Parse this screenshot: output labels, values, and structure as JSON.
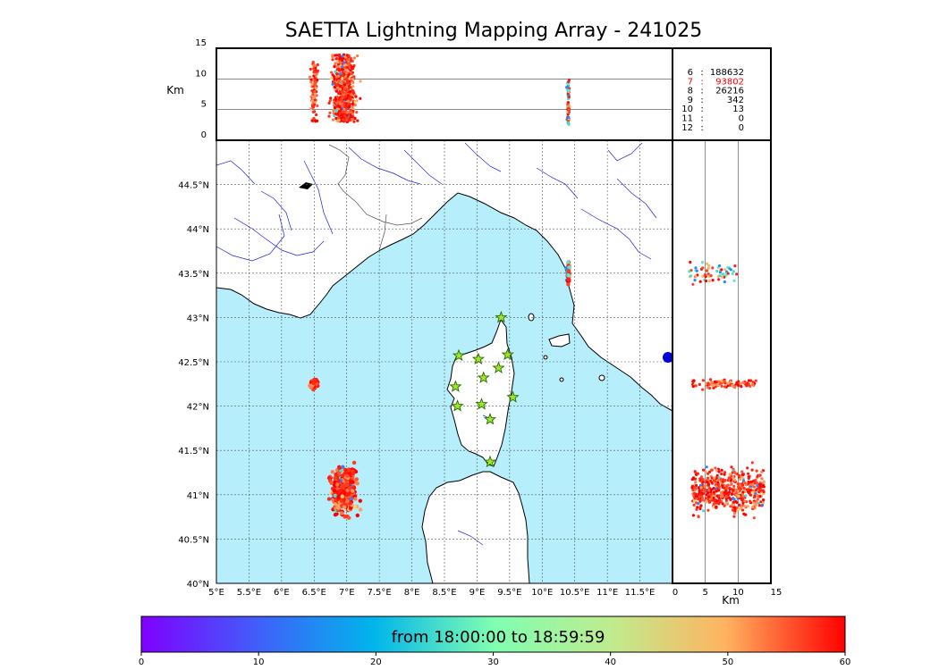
{
  "title": "SAETTA Lightning Mapping Array - 241025",
  "colors": {
    "sea": "#b6eefb",
    "land": "#ffffff",
    "coast": "#000000",
    "river": "#2020dd",
    "border": "#555555",
    "station_fill": "#9ee62a",
    "station_stroke": "#2a6a00",
    "grid": "#555555"
  },
  "altitude_panel": {
    "ylabel": "Km",
    "yticks": [
      0,
      5,
      10,
      15
    ],
    "ylim": [
      0,
      15
    ]
  },
  "side_panel": {
    "xlabel": "Km",
    "xticks": [
      0,
      5,
      10,
      15
    ],
    "xlim": [
      0,
      15
    ]
  },
  "counts": [
    {
      "stations": "6",
      "sep": ":",
      "value": "188632",
      "color": "#000000"
    },
    {
      "stations": "7",
      "sep": ":",
      "value": "93802",
      "color": "#ff0000"
    },
    {
      "stations": "8",
      "sep": ":",
      "value": "26216",
      "color": "#000000"
    },
    {
      "stations": "9",
      "sep": ":",
      "value": "342",
      "color": "#000000"
    },
    {
      "stations": "10",
      "sep": ":",
      "value": "13",
      "color": "#000000"
    },
    {
      "stations": "11",
      "sep": ":",
      "value": "0",
      "color": "#000000"
    },
    {
      "stations": "12",
      "sep": ":",
      "value": "0",
      "color": "#000000"
    }
  ],
  "map": {
    "lon_range": [
      5.0,
      12.0
    ],
    "lat_range": [
      40.0,
      45.0
    ],
    "lon_ticks": [
      "5°E",
      "5.5°E",
      "6°E",
      "6.5°E",
      "7°E",
      "7.5°E",
      "8°E",
      "8.5°E",
      "9°E",
      "9.5°E",
      "10°E",
      "10.5°E",
      "11°E",
      "11.5°E"
    ],
    "lat_ticks": [
      "40°N",
      "40.5°N",
      "41°N",
      "41.5°N",
      "42°N",
      "42.5°N",
      "43°N",
      "43.5°N",
      "44°N",
      "44.5°N"
    ]
  },
  "colorbar": {
    "label": "from 18:00:00 to 18:59:59",
    "ticks": [
      "0",
      "10",
      "20",
      "30",
      "40",
      "50",
      "60"
    ],
    "range": [
      0,
      60
    ]
  },
  "chart_data": {
    "type": "scatter",
    "title": "SAETTA Lightning Mapping Array - 241025",
    "xlabel": "",
    "ylabel": "",
    "xlim": [
      5.0,
      12.0
    ],
    "ylim": [
      40.0,
      45.0
    ],
    "color_variable_range": [
      0,
      60
    ],
    "stations": [
      {
        "lon": 9.37,
        "lat": 43.0
      },
      {
        "lon": 8.72,
        "lat": 42.57
      },
      {
        "lon": 9.02,
        "lat": 42.53
      },
      {
        "lon": 9.47,
        "lat": 42.58
      },
      {
        "lon": 9.33,
        "lat": 42.43
      },
      {
        "lon": 9.1,
        "lat": 42.32
      },
      {
        "lon": 8.67,
        "lat": 42.22
      },
      {
        "lon": 9.55,
        "lat": 42.1
      },
      {
        "lon": 8.7,
        "lat": 42.0
      },
      {
        "lon": 9.07,
        "lat": 42.02
      },
      {
        "lon": 9.2,
        "lat": 41.85
      },
      {
        "lon": 9.2,
        "lat": 41.37
      }
    ],
    "lightning_clusters": [
      {
        "lon_center": 6.95,
        "lat_center": 41.05,
        "lon_spread": 0.27,
        "lat_spread": 0.35,
        "alt_min_km": 3,
        "alt_max_km": 14,
        "dominant_time": "late"
      },
      {
        "lon_center": 6.5,
        "lat_center": 42.25,
        "lon_spread": 0.08,
        "lat_spread": 0.07,
        "alt_min_km": 3,
        "alt_max_km": 13,
        "dominant_time": "late"
      },
      {
        "lon_center": 10.4,
        "lat_center": 43.5,
        "lon_spread": 0.03,
        "lat_spread": 0.15,
        "alt_min_km": 2,
        "alt_max_km": 10,
        "dominant_time": "mixed"
      }
    ]
  }
}
